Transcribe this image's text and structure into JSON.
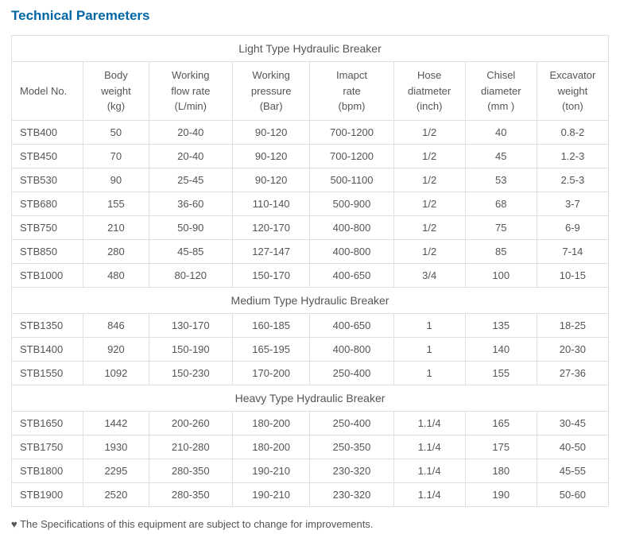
{
  "title": "Technical Paremeters",
  "columns": [
    "Model No.",
    "Body weight (kg)",
    "Working flow rate (L/min)",
    "Working pressure (Bar)",
    "Imapct rate (bpm)",
    "Hose diatmeter (inch)",
    "Chisel diameter (mm )",
    "Excavator weight (ton)"
  ],
  "sections": [
    {
      "header": "Light Type Hydraulic Breaker",
      "rows": [
        [
          "STB400",
          "50",
          "20-40",
          "90-120",
          "700-1200",
          "1/2",
          "40",
          "0.8-2"
        ],
        [
          "STB450",
          "70",
          "20-40",
          "90-120",
          "700-1200",
          "1/2",
          "45",
          "1.2-3"
        ],
        [
          "STB530",
          "90",
          "25-45",
          "90-120",
          "500-1100",
          "1/2",
          "53",
          "2.5-3"
        ],
        [
          "STB680",
          "155",
          "36-60",
          "110-140",
          "500-900",
          "1/2",
          "68",
          "3-7"
        ],
        [
          "STB750",
          "210",
          "50-90",
          "120-170",
          "400-800",
          "1/2",
          "75",
          "6-9"
        ],
        [
          "STB850",
          "280",
          "45-85",
          "127-147",
          "400-800",
          "1/2",
          "85",
          "7-14"
        ],
        [
          "STB1000",
          "480",
          "80-120",
          "150-170",
          "400-650",
          "3/4",
          "100",
          "10-15"
        ]
      ]
    },
    {
      "header": "Medium Type Hydraulic Breaker",
      "rows": [
        [
          "STB1350",
          "846",
          "130-170",
          "160-185",
          "400-650",
          "1",
          "135",
          "18-25"
        ],
        [
          "STB1400",
          "920",
          "150-190",
          "165-195",
          "400-800",
          "1",
          "140",
          "20-30"
        ],
        [
          "STB1550",
          "1092",
          "150-230",
          "170-200",
          "250-400",
          "1",
          "155",
          "27-36"
        ]
      ]
    },
    {
      "header": "Heavy Type Hydraulic Breaker",
      "rows": [
        [
          "STB1650",
          "1442",
          "200-260",
          "180-200",
          "250-400",
          "1.1/4",
          "165",
          "30-45"
        ],
        [
          "STB1750",
          "1930",
          "210-280",
          "180-200",
          "250-350",
          "1.1/4",
          "175",
          "40-50"
        ],
        [
          "STB1800",
          "2295",
          "280-350",
          "190-210",
          "230-320",
          "1.1/4",
          "180",
          "45-55"
        ],
        [
          "STB1900",
          "2520",
          "280-350",
          "190-210",
          "230-320",
          "1.1/4",
          "190",
          "50-60"
        ]
      ]
    }
  ],
  "note": "♥ The Specifications of this equipment are subject to change for improvements.",
  "style": {
    "title_color": "#0066a6",
    "border_color": "#e0e0e0",
    "text_color": "#555555",
    "font_size_body": 13,
    "font_size_title": 17
  }
}
